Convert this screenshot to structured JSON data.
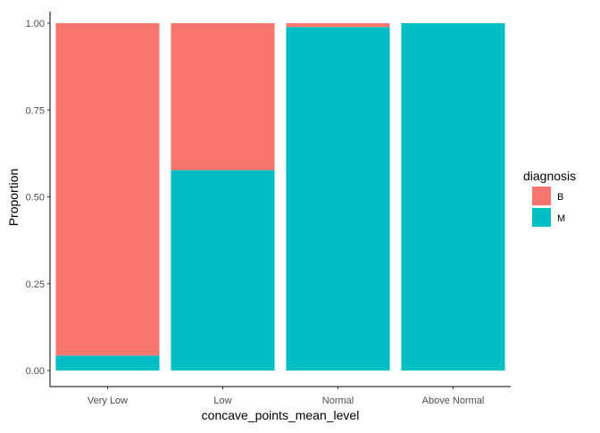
{
  "chart_data": {
    "type": "bar",
    "stacked": true,
    "title": "",
    "xlabel": "concave_points_mean_level",
    "ylabel": "Proportion",
    "categories": [
      "Very Low",
      "Low",
      "Normal",
      "Above Normal"
    ],
    "series": [
      {
        "name": "M",
        "values": [
          0.043,
          0.577,
          0.989,
          1.0
        ]
      },
      {
        "name": "B",
        "values": [
          0.957,
          0.423,
          0.011,
          0.0
        ]
      }
    ],
    "ylim": [
      0,
      1
    ],
    "yticks": [
      "0.00",
      "0.25",
      "0.50",
      "0.75",
      "1.00"
    ],
    "legend": {
      "title": "diagnosis",
      "position": "right",
      "entries": [
        "B",
        "M"
      ]
    },
    "colors": {
      "B": "#F8766D",
      "M": "#00BFC4"
    },
    "grid": false
  }
}
